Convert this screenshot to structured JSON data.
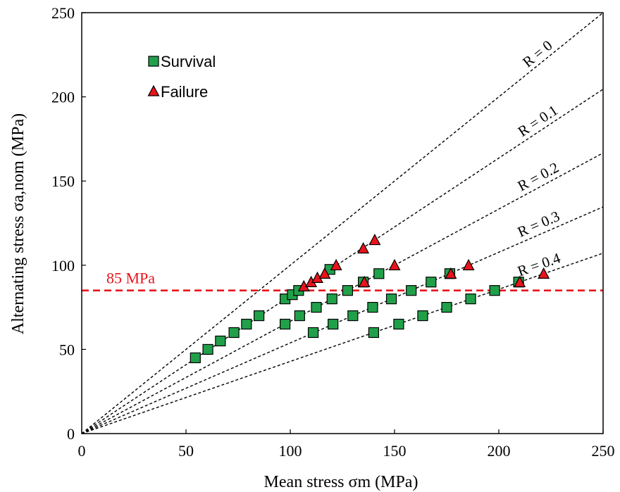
{
  "chart_data": {
    "type": "scatter",
    "xlabel": "Mean stress σm (MPa)",
    "ylabel": "Alternating stress σa,nom (MPa)",
    "xlim": [
      0,
      250
    ],
    "ylim": [
      0,
      250
    ],
    "xticks": [
      "0",
      "50",
      "100",
      "150",
      "200",
      "250"
    ],
    "yticks": [
      "0",
      "50",
      "100",
      "150",
      "200",
      "250"
    ],
    "grid": false,
    "legend_position": "top-left",
    "series": [
      {
        "name": "Survival",
        "marker": "square",
        "color": "#21a04a",
        "points": [
          [
            54.5,
            45
          ],
          [
            60.5,
            50
          ],
          [
            66.5,
            55
          ],
          [
            73,
            60
          ],
          [
            79,
            65
          ],
          [
            85,
            70
          ],
          [
            97.5,
            80
          ],
          [
            101,
            82.5
          ],
          [
            104,
            85
          ],
          [
            119,
            97.5
          ],
          [
            97.5,
            65
          ],
          [
            104.5,
            70
          ],
          [
            112.5,
            75
          ],
          [
            120,
            80
          ],
          [
            127.5,
            85
          ],
          [
            135,
            90
          ],
          [
            142.5,
            95
          ],
          [
            111,
            60
          ],
          [
            120.5,
            65
          ],
          [
            130,
            70
          ],
          [
            139.5,
            75
          ],
          [
            148.5,
            80
          ],
          [
            158,
            85
          ],
          [
            167.5,
            90
          ],
          [
            176.5,
            95
          ],
          [
            140,
            60
          ],
          [
            152,
            65
          ],
          [
            163.5,
            70
          ],
          [
            175,
            75
          ],
          [
            186.5,
            80
          ],
          [
            198,
            85
          ],
          [
            209.5,
            90
          ]
        ]
      },
      {
        "name": "Failure",
        "marker": "triangle",
        "color": "#e8141c",
        "points": [
          [
            106.5,
            87.5
          ],
          [
            110,
            90
          ],
          [
            113,
            92.5
          ],
          [
            116.5,
            95
          ],
          [
            122,
            100
          ],
          [
            135,
            110
          ],
          [
            140.5,
            115
          ],
          [
            135.5,
            90
          ],
          [
            150,
            100
          ],
          [
            177,
            95
          ],
          [
            185.5,
            100
          ],
          [
            210,
            90
          ],
          [
            221.5,
            95
          ]
        ]
      }
    ],
    "ratio_lines": [
      {
        "label": "R = 0",
        "slope": 1.0
      },
      {
        "label": "R = 0.1",
        "slope": 0.8182
      },
      {
        "label": "R = 0.2",
        "slope": 0.6667
      },
      {
        "label": "R = 0.3",
        "slope": 0.5385
      },
      {
        "label": "R = 0.4",
        "slope": 0.4286
      }
    ],
    "reference_line": {
      "label": "85 MPa",
      "y": 85,
      "color": "#e8141c"
    }
  }
}
